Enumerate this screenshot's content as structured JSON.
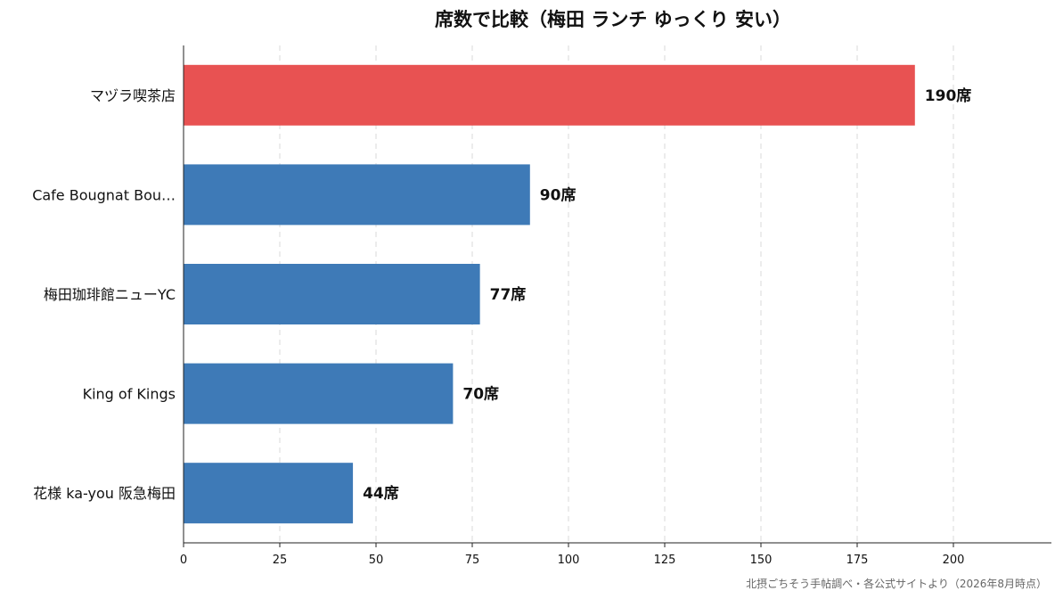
{
  "chart_data": {
    "type": "bar",
    "orientation": "horizontal",
    "title": "席数で比較（梅田 ランチ ゆっくり 安い）",
    "categories": [
      "マヅラ喫茶店",
      "Cafe Bougnat Bou…",
      "梅田珈琲館ニューYC",
      "King of Kings",
      "花様 ka-you 阪急梅田"
    ],
    "values": [
      190,
      90,
      77,
      70,
      44
    ],
    "value_labels": [
      "190席",
      "90席",
      "77席",
      "70席",
      "44席"
    ],
    "bar_colors": [
      "#e85252",
      "#3e7ab7",
      "#3e7ab7",
      "#3e7ab7",
      "#3e7ab7"
    ],
    "xticks": [
      0,
      25,
      50,
      75,
      100,
      125,
      150,
      175,
      200
    ],
    "xtick_labels": [
      "0",
      "25",
      "50",
      "75",
      "100",
      "125",
      "150",
      "175",
      "200"
    ],
    "xlim": [
      0,
      225
    ],
    "grid": "vertical-dashed",
    "xlabel": "",
    "ylabel": ""
  },
  "source_note": "北摂ごちそう手帖調べ・各公式サイトより（2026年8月時点）"
}
